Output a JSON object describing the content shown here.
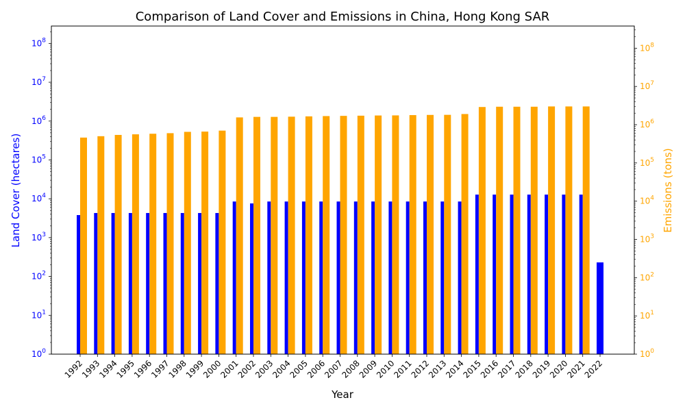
{
  "chart_data": {
    "type": "bar",
    "title": "Comparison of Land Cover and Emissions in China, Hong Kong SAR",
    "xlabel": "Year",
    "ylabel_left": "Land Cover (hectares)",
    "ylabel_right": "Emissions (tons)",
    "y_scale": "log",
    "ylim_left": [
      1,
      280000000
    ],
    "ylim_right": [
      1,
      380000000
    ],
    "y_tick_exponents": [
      0,
      1,
      2,
      3,
      4,
      5,
      6,
      7,
      8
    ],
    "colors": {
      "left_axis": "#0000ff",
      "right_axis": "#ffa500"
    },
    "categories": [
      "1992",
      "1993",
      "1994",
      "1995",
      "1996",
      "1997",
      "1998",
      "1999",
      "2000",
      "2001",
      "2002",
      "2003",
      "2004",
      "2005",
      "2006",
      "2007",
      "2008",
      "2009",
      "2010",
      "2011",
      "2012",
      "2013",
      "2014",
      "2015",
      "2016",
      "2017",
      "2018",
      "2019",
      "2020",
      "2021",
      "2022"
    ],
    "series": [
      {
        "axis": "left",
        "color": "#0000ff",
        "values": [
          3800,
          4300,
          4300,
          4300,
          4300,
          4300,
          4300,
          4300,
          4300,
          8500,
          7600,
          8500,
          8500,
          8500,
          8500,
          8500,
          8500,
          8500,
          8500,
          8500,
          8500,
          8500,
          8500,
          12800,
          12800,
          12800,
          12800,
          12800,
          12800,
          12800,
          230
        ]
      },
      {
        "axis": "right",
        "color": "#ffa500",
        "values": [
          460000,
          500000,
          540000,
          560000,
          580000,
          600000,
          650000,
          660000,
          700000,
          1550000,
          1600000,
          1600000,
          1620000,
          1650000,
          1680000,
          1700000,
          1720000,
          1740000,
          1750000,
          1780000,
          1800000,
          1810000,
          1900000,
          2900000,
          2950000,
          2950000,
          2950000,
          3000000,
          3000000,
          3000000,
          null
        ]
      }
    ]
  }
}
